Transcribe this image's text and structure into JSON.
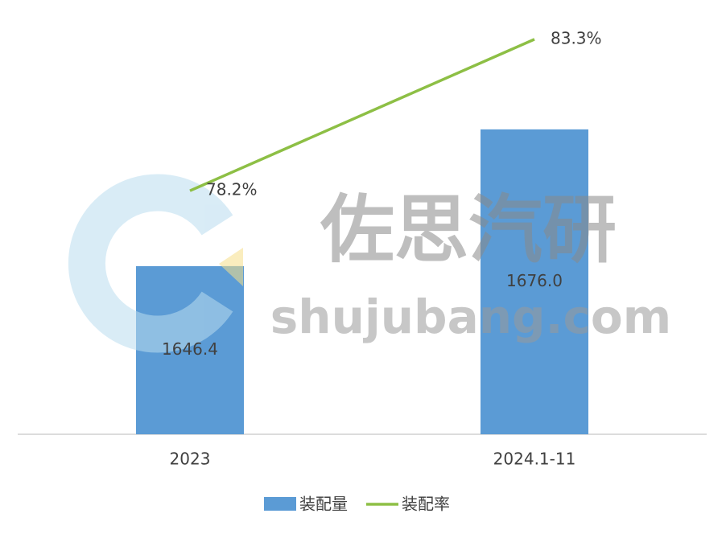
{
  "chart_data": {
    "type": "combo",
    "categories": [
      "2023",
      "2024.1-11"
    ],
    "series": [
      {
        "name": "装配量",
        "type": "bar",
        "color": "#5b9bd5",
        "values": [
          1646.4,
          1676.0
        ],
        "value_labels": [
          "1646.4",
          "1676.0"
        ]
      },
      {
        "name": "装配率",
        "type": "line",
        "axis": "y2",
        "color": "#8dbf45",
        "values": [
          78.2,
          83.3
        ],
        "value_labels": [
          "78.2%",
          "83.3%"
        ]
      }
    ],
    "ylim": [
      1610,
      1700
    ],
    "y2lim": [
      70,
      84
    ],
    "grid": false,
    "legend": "bottom",
    "watermark": {
      "title": "佐思汽研",
      "site": "shujubang.com"
    }
  }
}
